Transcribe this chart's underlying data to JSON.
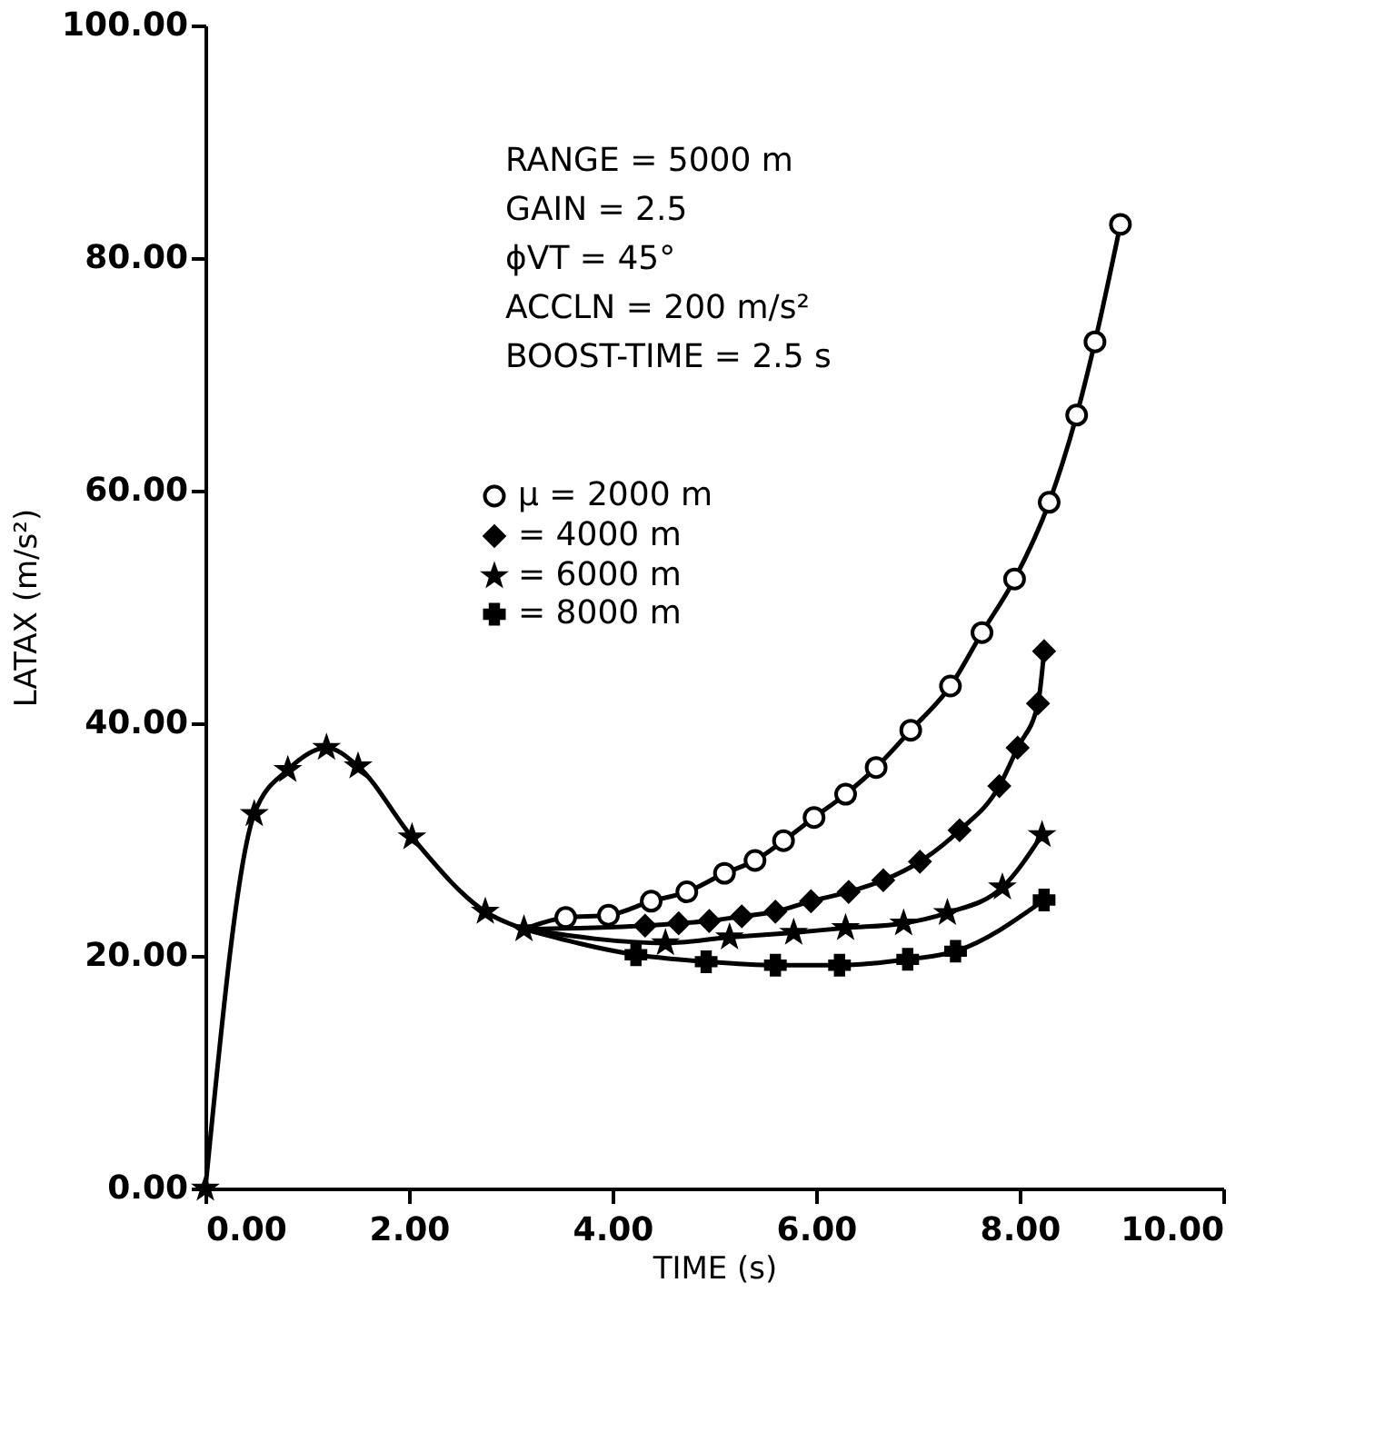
{
  "chart_data": {
    "type": "line",
    "xlabel": "TIME  (s)",
    "ylabel": "LATAX  (m/s²)",
    "xlim": [
      0,
      10
    ],
    "ylim": [
      0,
      100
    ],
    "xticks": [
      {
        "value": 0,
        "label": "0.00"
      },
      {
        "value": 2,
        "label": "2.00"
      },
      {
        "value": 4,
        "label": "4.00"
      },
      {
        "value": 6,
        "label": "6.00"
      },
      {
        "value": 8,
        "label": "8.00"
      },
      {
        "value": 10,
        "label": "10.00"
      }
    ],
    "yticks": [
      {
        "value": 0,
        "label": "0.00"
      },
      {
        "value": 20,
        "label": "20.00"
      },
      {
        "value": 40,
        "label": "40.00"
      },
      {
        "value": 60,
        "label": "60.00"
      },
      {
        "value": 80,
        "label": "80.00"
      },
      {
        "value": 100,
        "label": "100.00"
      }
    ],
    "grid": false,
    "legend": "top left",
    "line_style": "solid",
    "annotations": [
      "RANGE = 5000 m",
      "GAIN    = 2.5",
      "ϕVT      = 45°",
      "ACCLN = 200 m/s²",
      "BOOST-TIME = 2.5 s"
    ],
    "series": [
      {
        "color": "#000000",
        "marker": "star",
        "x": [
          0,
          0.48,
          0.81,
          1.19,
          1.5,
          2.03,
          2.75,
          3.13
        ],
        "values": [
          0,
          32.2,
          36.0,
          37.9,
          36.3,
          30.2,
          23.8,
          22.3
        ]
      },
      {
        "name": "μ   = 2000 m",
        "color": "#000000",
        "marker": "circle",
        "x": [
          3.13,
          3.54,
          3.96,
          4.38,
          4.73,
          5.1,
          5.4,
          5.68,
          5.98,
          6.29,
          6.59,
          6.93,
          7.32,
          7.63,
          7.95,
          8.29,
          8.56,
          8.74,
          8.99
        ],
        "values": [
          22.3,
          23.3,
          23.5,
          24.7,
          25.5,
          27.1,
          28.2,
          29.9,
          31.9,
          33.9,
          36.2,
          39.4,
          43.2,
          47.8,
          52.4,
          59.0,
          66.5,
          72.8,
          82.9
        ]
      },
      {
        "name": "= 4000 m",
        "color": "#000000",
        "marker": "diamond",
        "x": [
          3.13,
          4.32,
          4.65,
          4.95,
          5.27,
          5.6,
          5.95,
          6.32,
          6.66,
          7.02,
          7.41,
          7.8,
          7.98,
          8.18,
          8.24
        ],
        "values": [
          22.3,
          22.6,
          22.8,
          23.0,
          23.4,
          23.8,
          24.7,
          25.5,
          26.5,
          28.1,
          30.8,
          34.6,
          37.9,
          41.7,
          46.2
        ]
      },
      {
        "name": "= 6000 m",
        "color": "#000000",
        "marker": "star",
        "x": [
          3.13,
          4.52,
          5.15,
          5.78,
          6.29,
          6.86,
          7.29,
          7.83,
          8.22
        ],
        "values": [
          22.3,
          21.1,
          21.6,
          22.0,
          22.4,
          22.8,
          23.7,
          25.9,
          30.4
        ]
      },
      {
        "name": "= 8000 m",
        "color": "#000000",
        "marker": "cross",
        "x": [
          3.13,
          4.23,
          4.92,
          5.6,
          6.23,
          6.9,
          7.37,
          8.24
        ],
        "values": [
          22.3,
          20.1,
          19.5,
          19.2,
          19.2,
          19.7,
          20.4,
          24.8
        ]
      }
    ]
  }
}
